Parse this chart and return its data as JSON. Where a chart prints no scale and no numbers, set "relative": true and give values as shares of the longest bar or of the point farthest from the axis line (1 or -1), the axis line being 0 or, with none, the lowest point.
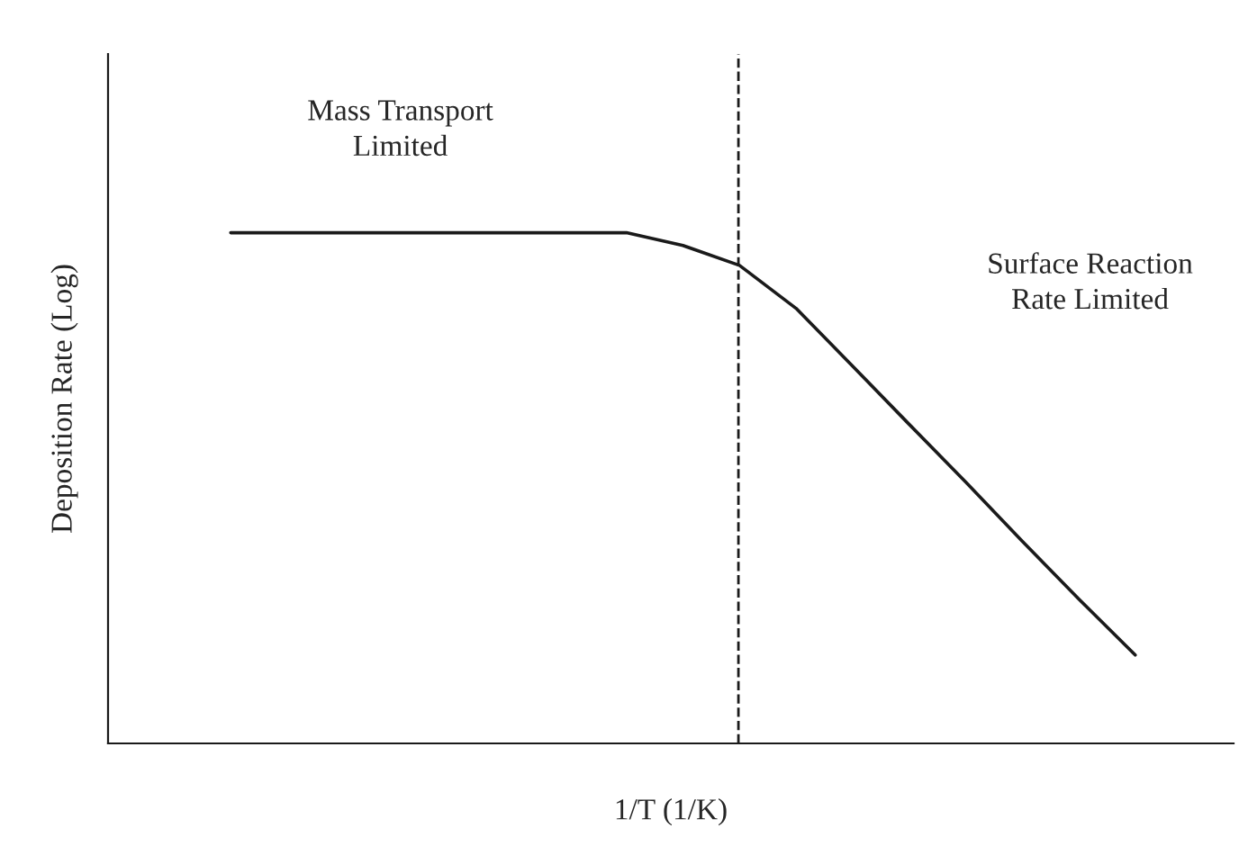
{
  "chart_data": {
    "type": "line",
    "relative": true,
    "xlabel": "1/T (1/K)",
    "ylabel": "Deposition Rate (Log)",
    "categories": [
      null,
      null,
      null,
      null,
      null,
      null,
      null,
      null,
      null,
      null,
      null,
      null,
      null,
      null,
      null,
      null,
      null
    ],
    "series": [
      {
        "color": "#1a1a1a",
        "values": [
          1,
          1,
          1,
          1,
          1,
          1,
          1,
          1,
          0.975,
          0.936,
          0.852,
          0.739,
          0.625,
          0.512,
          0.396,
          0.283,
          0.173
        ]
      }
    ],
    "annotations": [
      "Mass Transport\nLimited",
      "Surface Reaction\nRate Limited"
    ],
    "line_style": "solid",
    "marker": "none"
  }
}
